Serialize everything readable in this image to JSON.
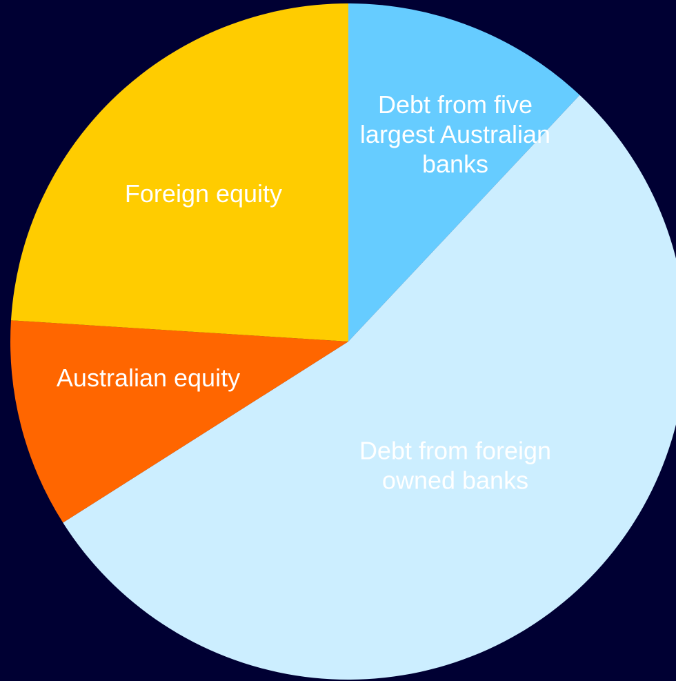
{
  "chart_data": {
    "type": "pie",
    "categories": [
      "Debt from five largest Australian banks",
      "Debt from foreign owned banks",
      "Australian equity",
      "Foreign equity"
    ],
    "values": [
      12,
      54,
      10,
      24
    ],
    "colors": [
      "#66ccff",
      "#cceeff",
      "#ff6600",
      "#ffcc00"
    ]
  }
}
